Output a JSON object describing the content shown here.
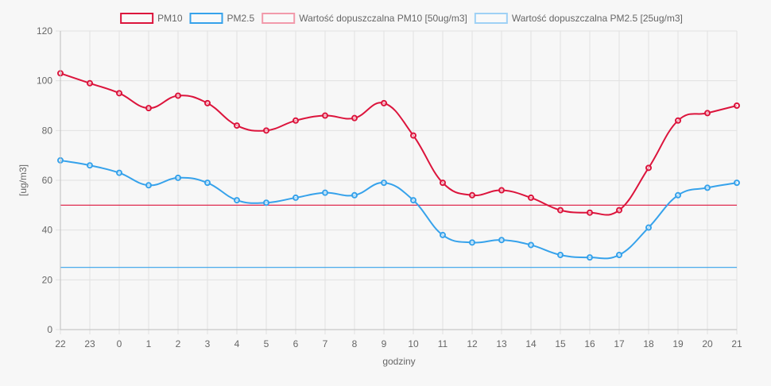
{
  "chart_data": {
    "type": "line",
    "categories": [
      "22",
      "23",
      "0",
      "1",
      "2",
      "3",
      "4",
      "5",
      "6",
      "7",
      "8",
      "9",
      "10",
      "11",
      "12",
      "13",
      "14",
      "15",
      "16",
      "17",
      "18",
      "19",
      "20",
      "21"
    ],
    "series": [
      {
        "name": "PM10",
        "color": "#dc143c",
        "values": [
          103,
          99,
          95,
          89,
          94,
          91,
          82,
          80,
          84,
          86,
          85,
          91,
          78,
          59,
          54,
          56,
          53,
          48,
          47,
          48,
          65,
          84,
          87,
          90
        ]
      },
      {
        "name": "PM2.5",
        "color": "#36a2eb",
        "values": [
          68,
          66,
          63,
          58,
          61,
          59,
          52,
          51,
          53,
          55,
          54,
          59,
          52,
          38,
          35,
          36,
          34,
          30,
          29,
          30,
          41,
          54,
          57,
          59
        ]
      }
    ],
    "thresholds": [
      {
        "name": "Wartość dopuszczalna PM10 [50ug/m3]",
        "value": 50,
        "color": "#dc143c",
        "legend_color": "#f29aab"
      },
      {
        "name": "Wartość dopuszczalna PM2.5 [25ug/m3]",
        "value": 25,
        "color": "#36a2eb",
        "legend_color": "#9fd1f5"
      }
    ],
    "xlabel": "godziny",
    "ylabel": "[ug/m3]",
    "ylim": [
      0,
      120
    ],
    "yticks": [
      0,
      20,
      40,
      60,
      80,
      100,
      120
    ],
    "grid": true,
    "legend_position": "top"
  }
}
